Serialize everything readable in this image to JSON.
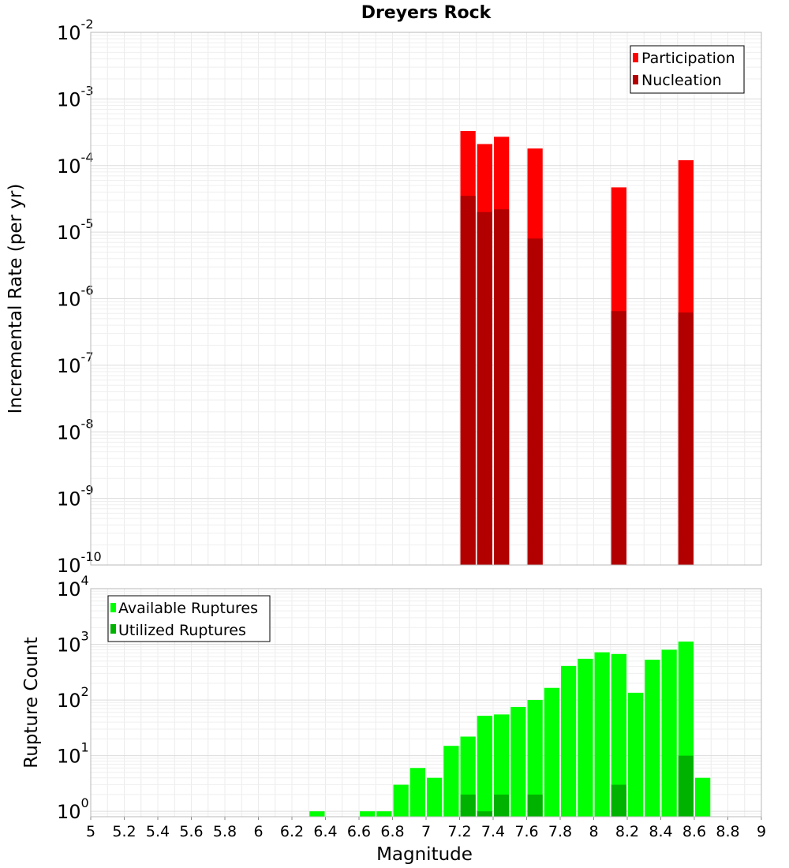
{
  "chart_data": [
    {
      "type": "bar",
      "title": "Dreyers Rock",
      "xlabel": "",
      "ylabel": "Incremental Rate (per yr)",
      "yscale": "log",
      "ylim": [
        1e-10,
        0.01
      ],
      "xlim": [
        5,
        9
      ],
      "legend_position": "top-right",
      "y_ticks": [
        {
          "base": "10",
          "exp": "-10",
          "value": 1e-10
        },
        {
          "base": "10",
          "exp": "-9",
          "value": 1e-09
        },
        {
          "base": "10",
          "exp": "-8",
          "value": 1e-08
        },
        {
          "base": "10",
          "exp": "-7",
          "value": 1e-07
        },
        {
          "base": "10",
          "exp": "-6",
          "value": 1e-06
        },
        {
          "base": "10",
          "exp": "-5",
          "value": 1e-05
        },
        {
          "base": "10",
          "exp": "-4",
          "value": 0.0001
        },
        {
          "base": "10",
          "exp": "-3",
          "value": 0.001
        },
        {
          "base": "10",
          "exp": "-2",
          "value": 0.01
        }
      ],
      "series": [
        {
          "name": "Participation",
          "color": "#ff0000",
          "x": [
            7.25,
            7.35,
            7.45,
            7.65,
            8.15,
            8.55
          ],
          "values": [
            0.00033,
            0.00021,
            0.00027,
            0.00018,
            4.7e-05,
            0.00012
          ]
        },
        {
          "name": "Nucleation",
          "color": "#b20000",
          "x": [
            7.25,
            7.35,
            7.45,
            7.65,
            8.15,
            8.55
          ],
          "values": [
            3.5e-05,
            2e-05,
            2.2e-05,
            8e-06,
            6.5e-07,
            6.2e-07
          ]
        }
      ]
    },
    {
      "type": "bar",
      "title": "",
      "xlabel": "Magnitude",
      "ylabel": "Rupture Count",
      "yscale": "log",
      "ylim": [
        0.8,
        10000
      ],
      "xlim": [
        5,
        9
      ],
      "legend_position": "top-left",
      "x_ticks": [
        "5",
        "5.2",
        "5.4",
        "5.6",
        "5.8",
        "6",
        "6.2",
        "6.4",
        "6.6",
        "6.8",
        "7",
        "7.2",
        "7.4",
        "7.6",
        "7.8",
        "8",
        "8.2",
        "8.4",
        "8.6",
        "8.8",
        "9"
      ],
      "y_ticks": [
        {
          "base": "10",
          "exp": "0",
          "value": 1
        },
        {
          "base": "10",
          "exp": "1",
          "value": 10
        },
        {
          "base": "10",
          "exp": "2",
          "value": 100
        },
        {
          "base": "10",
          "exp": "3",
          "value": 1000
        },
        {
          "base": "10",
          "exp": "4",
          "value": 10000
        }
      ],
      "series": [
        {
          "name": "Available Ruptures",
          "color": "#00ff00",
          "x": [
            6.35,
            6.65,
            6.75,
            6.85,
            6.95,
            7.05,
            7.15,
            7.25,
            7.35,
            7.45,
            7.55,
            7.65,
            7.75,
            7.85,
            7.95,
            8.05,
            8.15,
            8.25,
            8.35,
            8.45,
            8.55,
            8.65
          ],
          "values": [
            1,
            1,
            1,
            3,
            6,
            4,
            15,
            22,
            52,
            55,
            75,
            100,
            165,
            410,
            550,
            720,
            670,
            135,
            530,
            800,
            1120,
            4
          ]
        },
        {
          "name": "Utilized Ruptures",
          "color": "#00b200",
          "x": [
            7.25,
            7.35,
            7.45,
            7.65,
            8.15,
            8.55
          ],
          "values": [
            2,
            1,
            2,
            2,
            3,
            10
          ]
        }
      ]
    }
  ]
}
